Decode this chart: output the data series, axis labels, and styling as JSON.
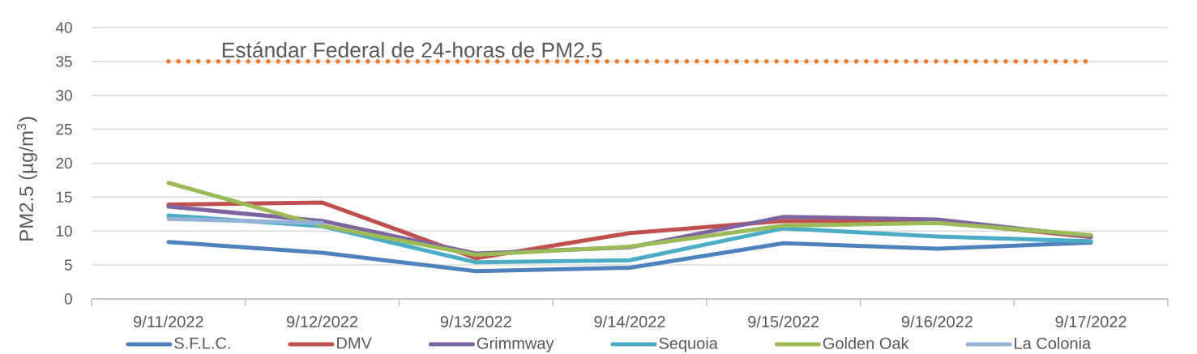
{
  "chart_data": {
    "type": "line",
    "ylabel": "PM2.5 (µg/m$^{3}$)",
    "categories": [
      "9/11/2022",
      "9/12/2022",
      "9/13/2022",
      "9/14/2022",
      "9/15/2022",
      "9/16/2022",
      "9/17/2022"
    ],
    "series": [
      {
        "name": "S.F.L.C.",
        "color": "#4f81bd",
        "values": [
          8.4,
          6.8,
          4.1,
          4.6,
          8.2,
          7.4,
          8.3
        ]
      },
      {
        "name": "DMV",
        "color": "#c0504d",
        "values": [
          13.9,
          14.2,
          6.0,
          9.7,
          11.5,
          11.4,
          9.1
        ]
      },
      {
        "name": "Grimmway",
        "color": "#8064a2",
        "values": [
          13.6,
          11.5,
          6.7,
          7.6,
          12.1,
          11.7,
          9.2
        ]
      },
      {
        "name": "Sequoia",
        "color": "#4bacc6",
        "values": [
          12.3,
          10.7,
          5.4,
          5.7,
          10.4,
          9.2,
          8.5
        ]
      },
      {
        "name": "Golden Oak",
        "color": "#9bbb59",
        "values": [
          17.1,
          10.8,
          6.5,
          7.7,
          10.8,
          11.2,
          9.4
        ]
      },
      {
        "name": "La Colonia",
        "color": "#95b3d7",
        "values": [
          11.8,
          11.2,
          null,
          null,
          null,
          null,
          null
        ]
      }
    ],
    "ylim": [
      0,
      40
    ],
    "yticks": [
      0,
      5,
      10,
      15,
      20,
      25,
      30,
      35,
      40
    ],
    "grid": "y",
    "legend": "bottom",
    "ref_lines": [
      {
        "axis": "y",
        "value": 35,
        "label": "Estándar Federal de 24-horas de PM2.5",
        "color": "#ed7d31",
        "line_style": "dotted"
      }
    ]
  }
}
